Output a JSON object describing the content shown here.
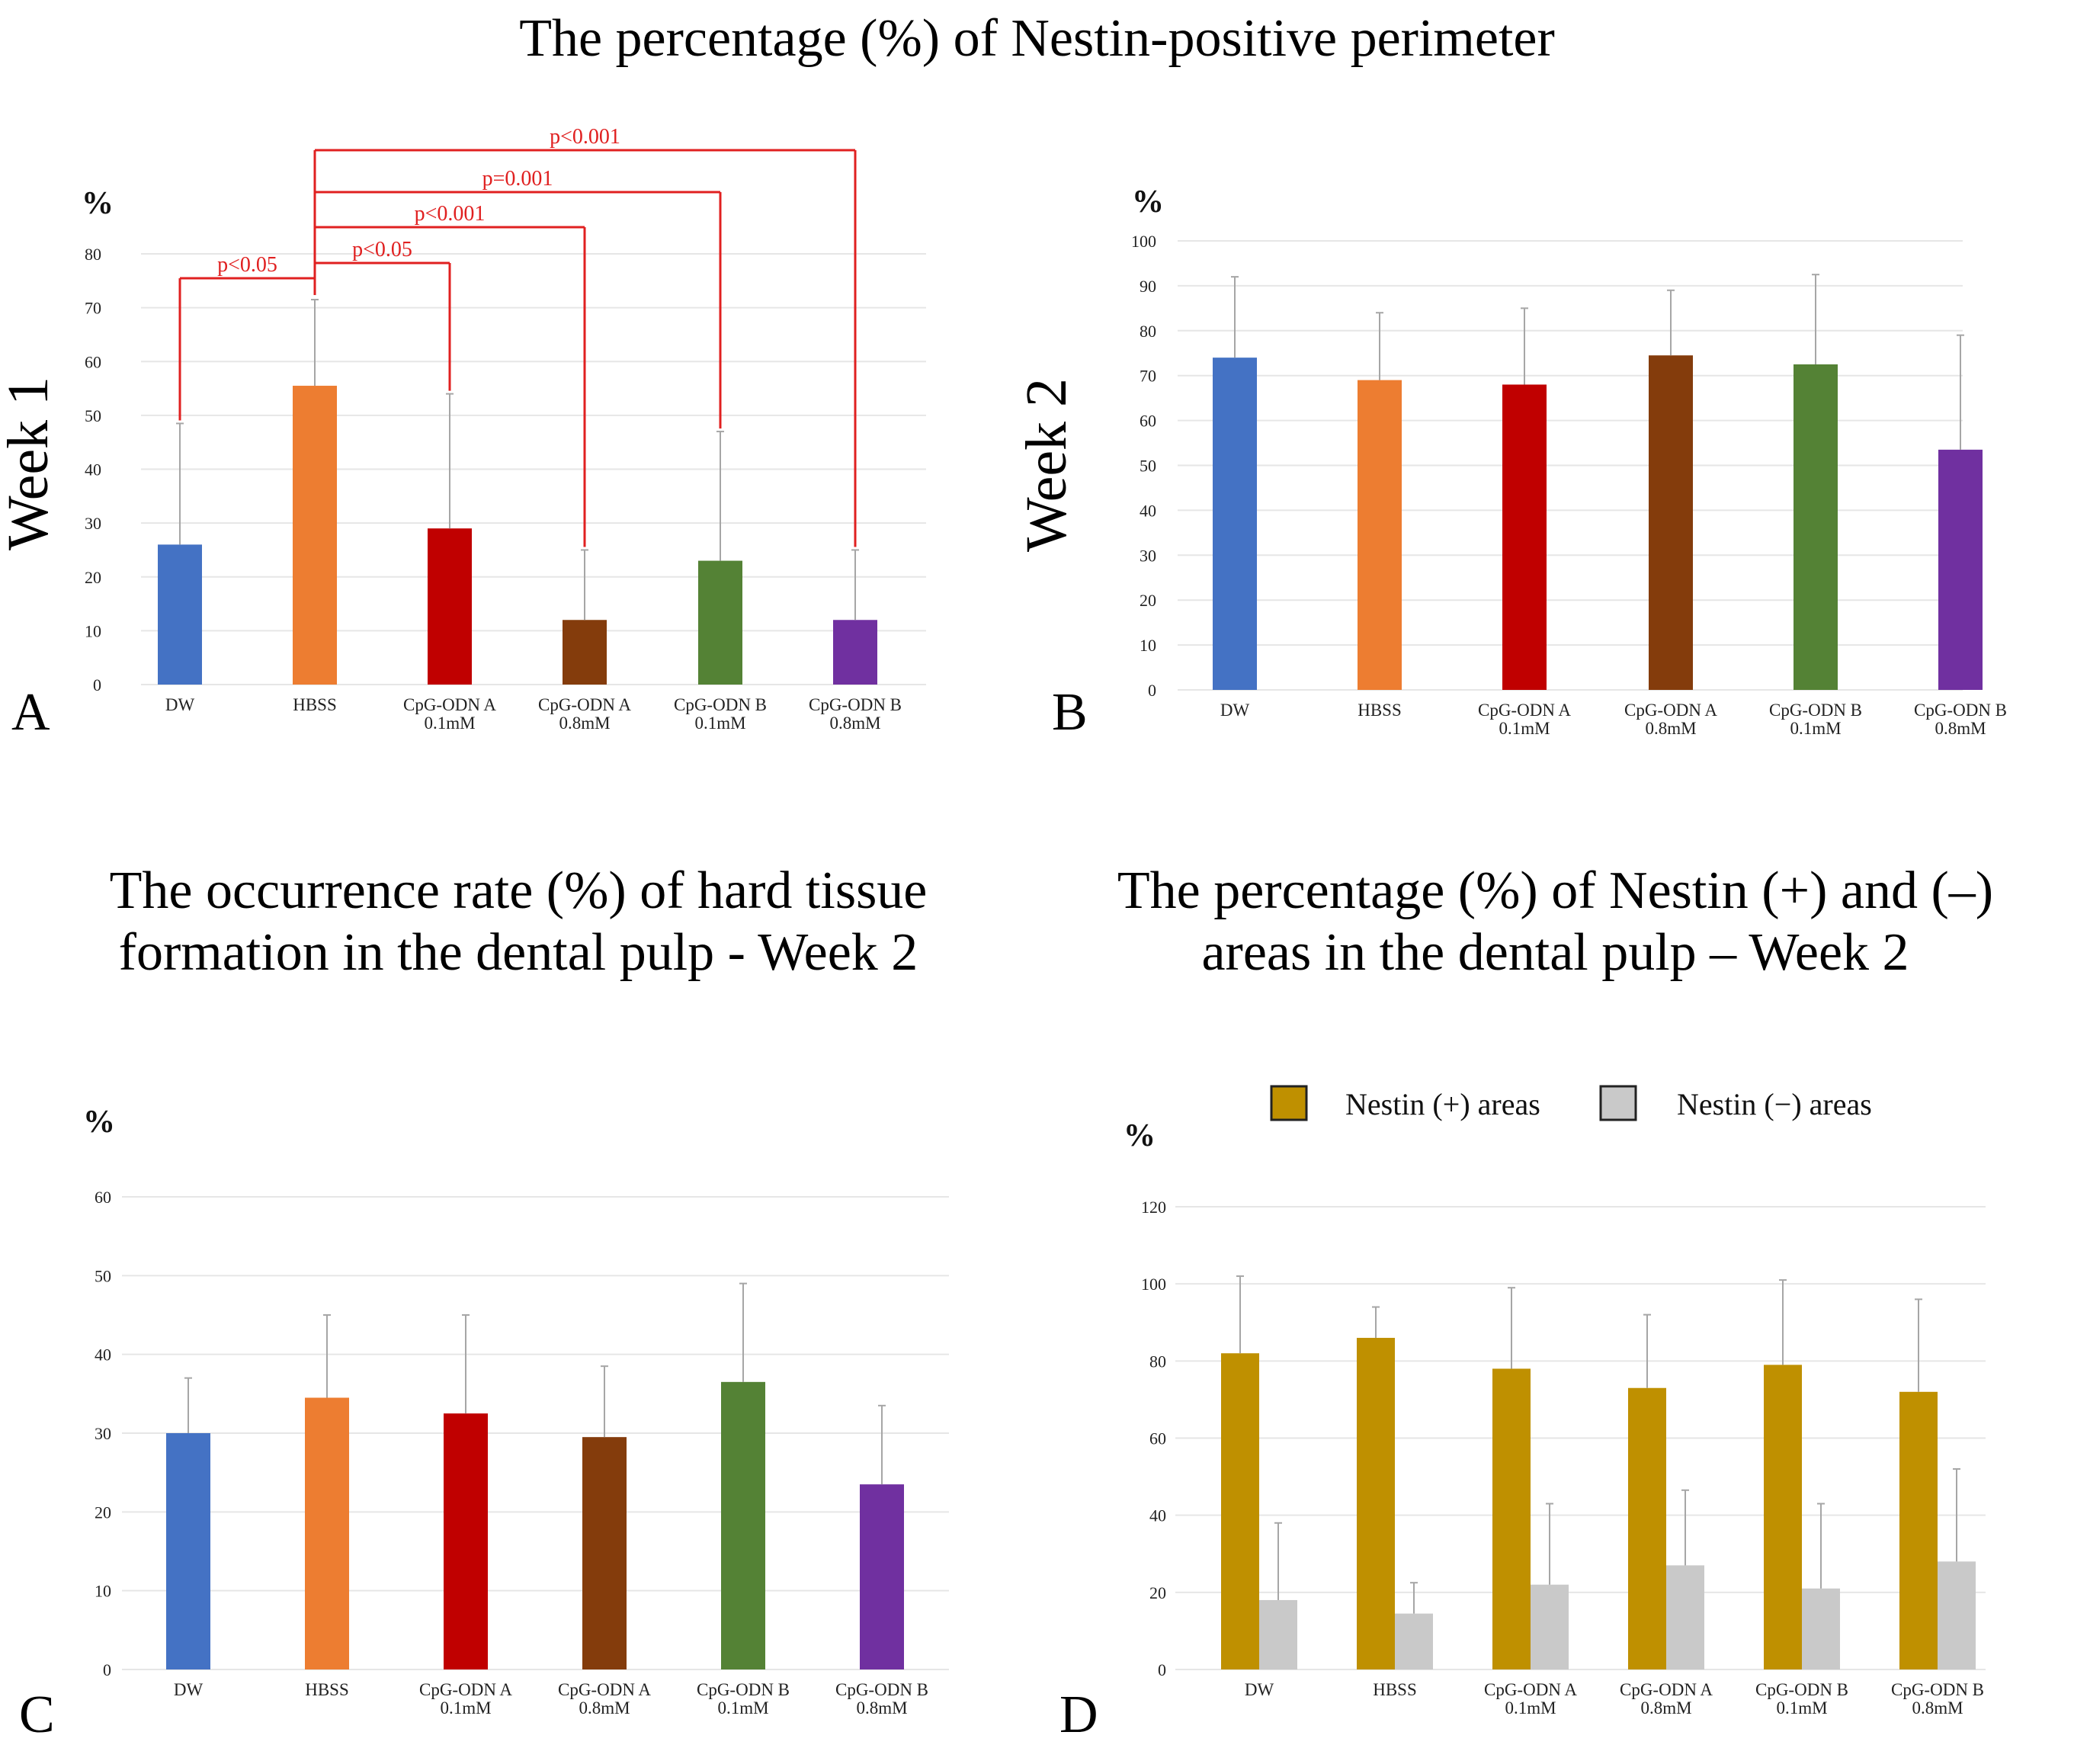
{
  "figure": {
    "main_title": "The percentage (%) of Nestin-positive perimeter",
    "panel_c_title_line1": "The occurrence rate (%) of hard tissue",
    "panel_c_title_line2": "formation in the dental pulp - Week 2",
    "panel_d_title_line1": "The percentage (%) of Nestin (+) and (–)",
    "panel_d_title_line2": "areas  in the dental pulp – Week 2",
    "panel_letters": [
      "A",
      "B",
      "C",
      "D"
    ]
  },
  "colors": {
    "DW": "#4472C4",
    "HBSS": "#ED7D31",
    "CpG-ODN A 0.1mM": "#C00000",
    "CpG-ODN A 0.8mM": "#843C0C",
    "CpG-ODN B 0.1mM": "#548235",
    "CpG-ODN B 0.8mM": "#7030A0",
    "nestin_pos": "#BF9000",
    "nestin_neg": "#C9C9C9",
    "significance": "#E02020",
    "grid": "#E6E6E6",
    "error_bar": "#A6A6A6"
  },
  "chart_data": [
    {
      "panel": "A",
      "type": "bar",
      "side_label": "Week 1",
      "ylabel": "%",
      "ylim": [
        0,
        80
      ],
      "yticks": [
        0,
        10,
        20,
        30,
        40,
        50,
        60,
        70,
        80
      ],
      "grid": true,
      "categories": [
        {
          "line1": "DW",
          "line2": ""
        },
        {
          "line1": "HBSS",
          "line2": ""
        },
        {
          "line1": "CpG-ODN A",
          "line2": "0.1mM"
        },
        {
          "line1": "CpG-ODN A",
          "line2": "0.8mM"
        },
        {
          "line1": "CpG-ODN B",
          "line2": "0.1mM"
        },
        {
          "line1": "CpG-ODN B",
          "line2": "0.8mM"
        }
      ],
      "series": [
        {
          "name": "Nestin-positive perimeter",
          "values": [
            26,
            55.5,
            29,
            12,
            23,
            12
          ],
          "errors": [
            22.5,
            16,
            25,
            13,
            24,
            13
          ]
        }
      ],
      "significance": [
        {
          "from": 1,
          "to": 0,
          "label": "p<0.05"
        },
        {
          "from": 1,
          "to": 2,
          "label": "p<0.05"
        },
        {
          "from": 1,
          "to": 3,
          "label": "p<0.001"
        },
        {
          "from": 1,
          "to": 4,
          "label": "p=0.001"
        },
        {
          "from": 1,
          "to": 5,
          "label": "p<0.001"
        }
      ]
    },
    {
      "panel": "B",
      "type": "bar",
      "side_label": "Week 2",
      "ylabel": "%",
      "ylim": [
        0,
        100
      ],
      "yticks": [
        0,
        10,
        20,
        30,
        40,
        50,
        60,
        70,
        80,
        90,
        100
      ],
      "grid": true,
      "categories": [
        {
          "line1": "DW",
          "line2": ""
        },
        {
          "line1": "HBSS",
          "line2": ""
        },
        {
          "line1": "CpG-ODN A",
          "line2": "0.1mM"
        },
        {
          "line1": "CpG-ODN A",
          "line2": "0.8mM"
        },
        {
          "line1": "CpG-ODN B",
          "line2": "0.1mM"
        },
        {
          "line1": "CpG-ODN B",
          "line2": "0.8mM"
        }
      ],
      "series": [
        {
          "name": "Nestin-positive perimeter",
          "values": [
            74,
            69,
            68,
            74.5,
            72.5,
            53.5
          ],
          "errors": [
            18,
            15,
            17,
            14.5,
            20,
            25.5
          ]
        }
      ]
    },
    {
      "panel": "C",
      "type": "bar",
      "side_label": "",
      "ylabel": "%",
      "ylim": [
        0,
        60
      ],
      "yticks": [
        0,
        10,
        20,
        30,
        40,
        50,
        60
      ],
      "grid": true,
      "categories": [
        {
          "line1": "DW",
          "line2": ""
        },
        {
          "line1": "HBSS",
          "line2": ""
        },
        {
          "line1": "CpG-ODN A",
          "line2": "0.1mM"
        },
        {
          "line1": "CpG-ODN A",
          "line2": "0.8mM"
        },
        {
          "line1": "CpG-ODN B",
          "line2": "0.1mM"
        },
        {
          "line1": "CpG-ODN B",
          "line2": "0.8mM"
        }
      ],
      "series": [
        {
          "name": "Hard tissue formation",
          "values": [
            30,
            34.5,
            32.5,
            29.5,
            36.5,
            23.5
          ],
          "errors": [
            7,
            10.5,
            12.5,
            9,
            12.5,
            10
          ]
        }
      ]
    },
    {
      "panel": "D",
      "type": "bar",
      "side_label": "",
      "ylabel": "%",
      "ylim": [
        0,
        120
      ],
      "yticks": [
        0,
        20,
        40,
        60,
        80,
        100,
        120
      ],
      "grid": true,
      "legend": [
        "Nestin (+) areas",
        "Nestin (−) areas"
      ],
      "legend_position": "top",
      "categories": [
        {
          "line1": "DW",
          "line2": ""
        },
        {
          "line1": "HBSS",
          "line2": ""
        },
        {
          "line1": "CpG-ODN A",
          "line2": "0.1mM"
        },
        {
          "line1": "CpG-ODN A",
          "line2": "0.8mM"
        },
        {
          "line1": "CpG-ODN B",
          "line2": "0.1mM"
        },
        {
          "line1": "CpG-ODN B",
          "line2": "0.8mM"
        }
      ],
      "series": [
        {
          "name": "Nestin (+) areas",
          "values": [
            82,
            86,
            78,
            73,
            79,
            72
          ],
          "errors": [
            20,
            8,
            21,
            19,
            22,
            24
          ]
        },
        {
          "name": "Nestin (−) areas",
          "values": [
            18,
            14.5,
            22,
            27,
            21,
            28
          ],
          "errors": [
            20,
            8,
            21,
            19.5,
            22,
            24
          ]
        }
      ]
    }
  ]
}
